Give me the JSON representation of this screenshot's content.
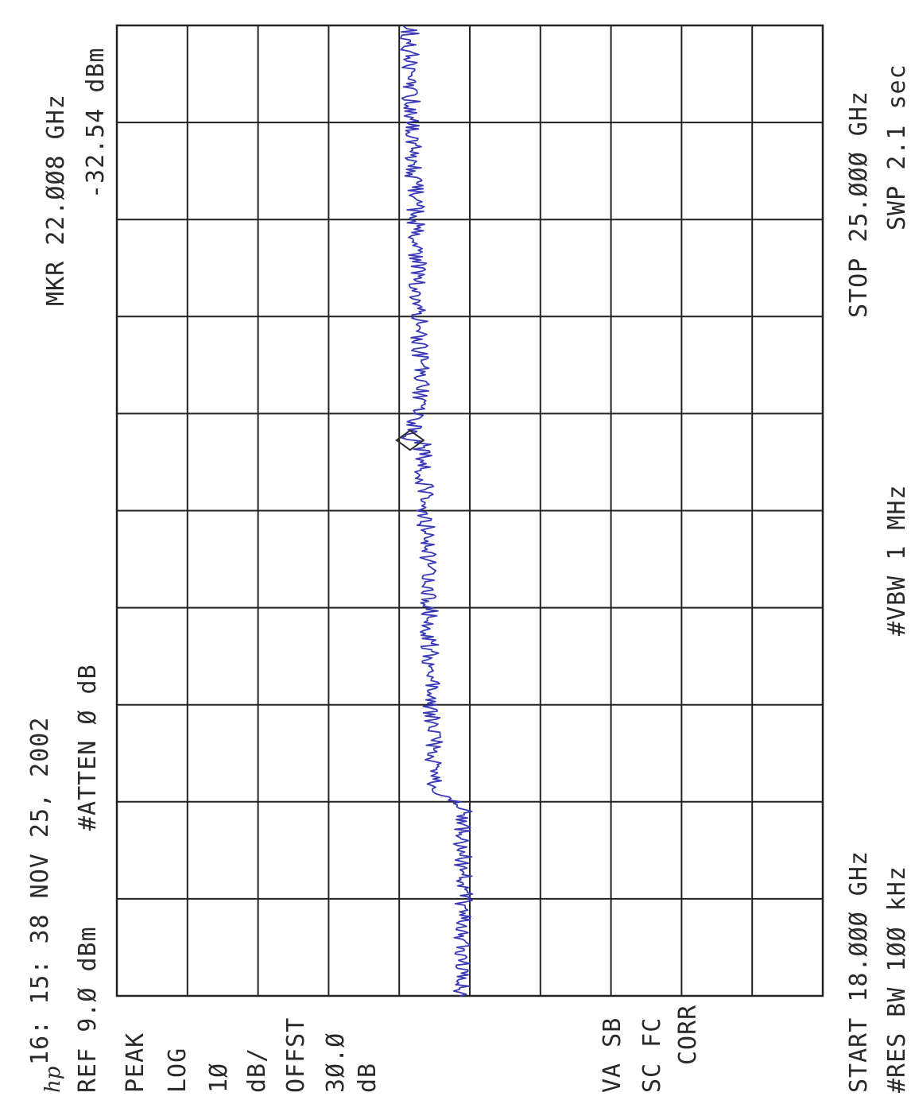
{
  "header": {
    "timestamp": "16: 15: 38 NOV 25, 2002",
    "logo": "hp"
  },
  "settings": {
    "ref": "REF 9.Ø dBm",
    "atten": "#ATTEN Ø dB",
    "mode": "PEAK",
    "scale_type": "LOG",
    "scale_value": "1Ø",
    "scale_unit": "dB/",
    "offset_label": "OFFST",
    "offset_value": "3Ø.Ø",
    "offset_unit": "dB",
    "va_sb": "VA SB",
    "sc_fc": "SC FC",
    "corr": "CORR"
  },
  "marker": {
    "freq": "MKR 22.ØØ8 GHz",
    "level": "-32.54 dBm"
  },
  "footer": {
    "start": "START 18.ØØØ GHz",
    "stop": "STOP 25.ØØØ GHz",
    "res_bw": "#RES BW 1ØØ kHz",
    "vbw": "#VBW 1 MHz",
    "swp": "SWP 2.1 sec"
  },
  "colors": {
    "trace": "#3a3ab8",
    "grid": "#222222",
    "text": "#2a2a2a"
  },
  "chart_data": {
    "type": "line",
    "x_unit": "GHz",
    "y_unit": "dBm",
    "xlim": [
      18.0,
      25.0
    ],
    "ylim": [
      -91.0,
      9.0
    ],
    "grid": true,
    "marker": {
      "x": 22.008,
      "y": -32.54
    },
    "series": [
      {
        "x": [
          18.0,
          18.35,
          18.7,
          19.05,
          19.4,
          19.44,
          19.55,
          19.9,
          20.25,
          20.6,
          20.95,
          21.3,
          21.65,
          22.0,
          22.008,
          22.35,
          22.7,
          23.05,
          23.4,
          23.75,
          24.1,
          24.45,
          24.8,
          25.0
        ],
        "y": [
          -40.0,
          -40.0,
          -40.1,
          -40.0,
          -40.0,
          -36.3,
          -36.0,
          -35.8,
          -35.5,
          -35.3,
          -35.2,
          -34.9,
          -34.6,
          -34.3,
          -32.5,
          -34.0,
          -33.9,
          -33.7,
          -33.5,
          -33.2,
          -32.9,
          -32.7,
          -32.5,
          -32.5
        ]
      }
    ]
  }
}
